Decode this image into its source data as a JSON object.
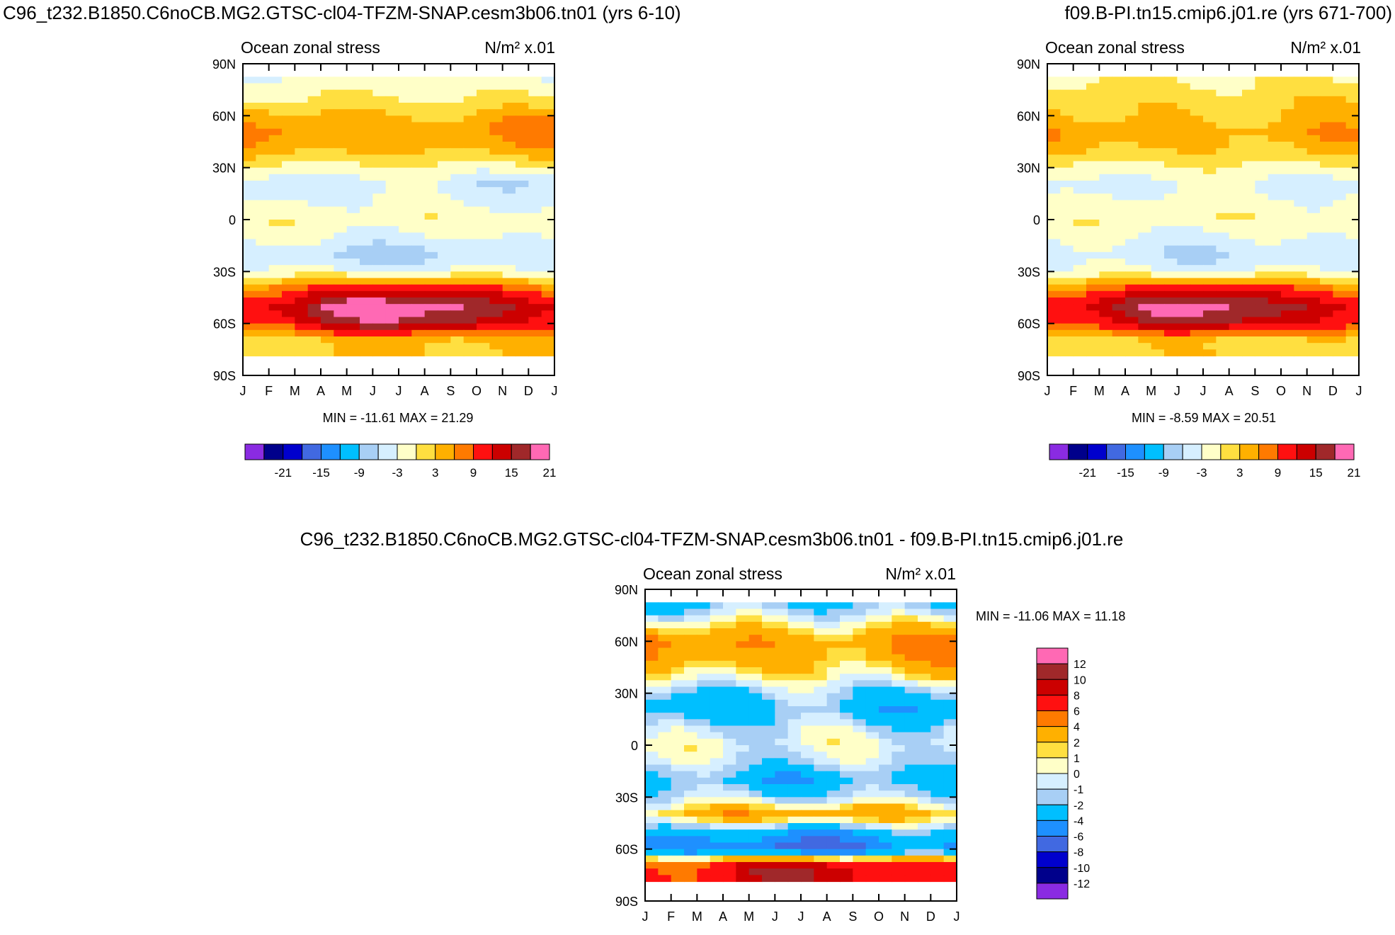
{
  "panels": [
    {
      "id": "left",
      "header": "C96_t232.B1850.C6noCB.MG2.GTSC-cl04-TFZM-SNAP.cesm3b06.tn01 (yrs 6-10)",
      "subtitle_left": "Ocean zonal stress",
      "units": "N/m² x.01",
      "stats": "MIN = -11.61 MAX =  21.29"
    },
    {
      "id": "right",
      "header": "f09.B-PI.tn15.cmip6.j01.re (yrs 671-700)",
      "subtitle_left": "Ocean zonal stress",
      "units": "N/m² x.01",
      "stats": "MIN =  -8.59 MAX =  20.51"
    },
    {
      "id": "diff",
      "header": "C96_t232.B1850.C6noCB.MG2.GTSC-cl04-TFZM-SNAP.cesm3b06.tn01 - f09.B-PI.tn15.cmip6.j01.re",
      "subtitle_left": "Ocean zonal stress",
      "units": "N/m² x.01",
      "stats": "MIN = -11.06 MAX =  11.18"
    }
  ],
  "chart_data": [
    {
      "type": "heatmap",
      "title": "Ocean zonal stress",
      "units": "N/m² x.01",
      "x": [
        "J",
        "F",
        "M",
        "A",
        "M",
        "J",
        "J",
        "A",
        "S",
        "O",
        "N",
        "D",
        "J"
      ],
      "y_ticks": [
        "90N",
        "60N",
        "30N",
        "0",
        "30S",
        "60S",
        "90S"
      ],
      "ylim": [
        -90,
        90
      ],
      "min": -11.61,
      "max": 21.29,
      "colorbar_labels": [
        "-21",
        "-15",
        "-9",
        "-3",
        "3",
        "9",
        "15",
        "21"
      ],
      "colors": [
        "#8a2be2",
        "#00008b",
        "#0000cd",
        "#4169e1",
        "#1e90ff",
        "#00bfff",
        "#a8cff5",
        "#d6efff",
        "#ffffc8",
        "#ffdf40",
        "#ffb000",
        "#ff7a00",
        "#ff1010",
        "#cc0000",
        "#a0282a",
        "#ff69b4"
      ],
      "zonal_profile": {
        "lat": [
          80,
          70,
          60,
          50,
          40,
          30,
          20,
          10,
          0,
          -10,
          -20,
          -30,
          -40,
          -50,
          -60,
          -70
        ],
        "value": [
          -2,
          0,
          4,
          6,
          4,
          -1,
          -5,
          -3,
          -1,
          -3,
          -6,
          -3,
          10,
          17,
          14,
          3
        ]
      }
    },
    {
      "type": "heatmap",
      "title": "Ocean zonal stress",
      "units": "N/m² x.01",
      "x": [
        "J",
        "F",
        "M",
        "A",
        "M",
        "J",
        "J",
        "A",
        "S",
        "O",
        "N",
        "D",
        "J"
      ],
      "y_ticks": [
        "90N",
        "60N",
        "30N",
        "0",
        "30S",
        "60S",
        "90S"
      ],
      "ylim": [
        -90,
        90
      ],
      "min": -8.59,
      "max": 20.51,
      "colorbar_labels": [
        "-21",
        "-15",
        "-9",
        "-3",
        "3",
        "9",
        "15",
        "21"
      ],
      "colors": [
        "#8a2be2",
        "#00008b",
        "#0000cd",
        "#4169e1",
        "#1e90ff",
        "#00bfff",
        "#a8cff5",
        "#d6efff",
        "#ffffc8",
        "#ffdf40",
        "#ffb000",
        "#ff7a00",
        "#ff1010",
        "#cc0000",
        "#a0282a",
        "#ff69b4"
      ],
      "zonal_profile": {
        "lat": [
          80,
          70,
          60,
          50,
          40,
          30,
          20,
          10,
          0,
          -10,
          -20,
          -30,
          -40,
          -50,
          -60,
          -70
        ],
        "value": [
          0,
          2,
          3,
          5,
          3,
          -1,
          -4,
          -2,
          -1,
          -3,
          -5,
          -3,
          9,
          16,
          13,
          2
        ]
      }
    },
    {
      "type": "heatmap",
      "title": "Ocean zonal stress",
      "units": "N/m² x.01",
      "x": [
        "J",
        "F",
        "M",
        "A",
        "M",
        "J",
        "J",
        "A",
        "S",
        "O",
        "N",
        "D",
        "J"
      ],
      "y_ticks": [
        "90N",
        "60N",
        "30N",
        "0",
        "30S",
        "60S",
        "90S"
      ],
      "ylim": [
        -90,
        90
      ],
      "min": -11.06,
      "max": 11.18,
      "colorbar_labels": [
        "12",
        "10",
        "8",
        "6",
        "4",
        "2",
        "1",
        "0",
        "-1",
        "-2",
        "-4",
        "-6",
        "-8",
        "-10",
        "-12"
      ],
      "colors": [
        "#ff69b4",
        "#a0282a",
        "#cc0000",
        "#ff1010",
        "#ff7a00",
        "#ffb000",
        "#ffdf40",
        "#ffffc8",
        "#d6efff",
        "#a8cff5",
        "#00bfff",
        "#1e90ff",
        "#4169e1",
        "#0000cd",
        "#00008b",
        "#8a2be2"
      ],
      "zonal_profile": {
        "lat": [
          80,
          70,
          60,
          50,
          40,
          30,
          20,
          10,
          0,
          -10,
          -20,
          -30,
          -40,
          -50,
          -60,
          -70
        ],
        "value": [
          -2,
          1,
          4,
          3,
          1,
          -2,
          -3,
          -1,
          0,
          -1,
          -3,
          -1,
          3,
          -3,
          -6,
          8
        ]
      }
    }
  ]
}
